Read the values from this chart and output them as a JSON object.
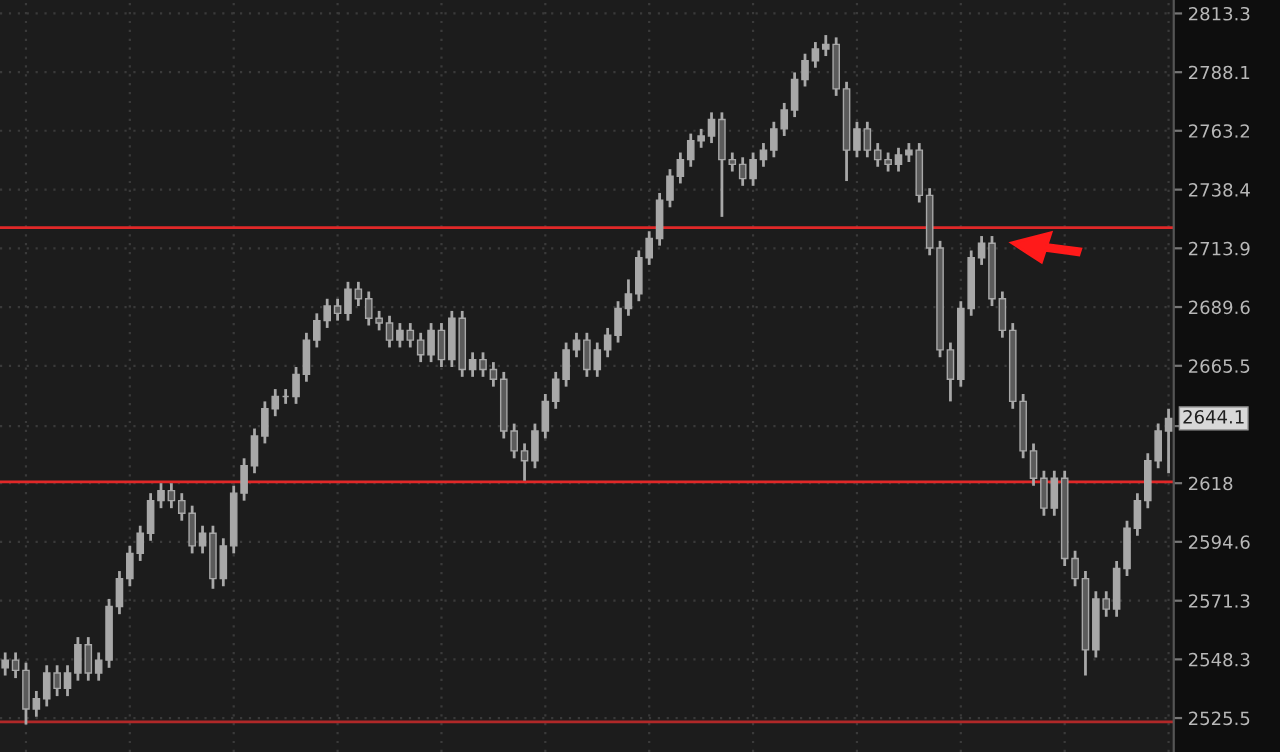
{
  "chart_data": {
    "type": "candlestick",
    "categories": [
      null,
      null,
      null,
      null,
      null,
      null,
      null,
      null,
      null,
      null,
      null,
      null,
      null,
      null,
      null,
      null,
      null,
      null,
      null,
      null,
      null,
      null,
      null,
      null,
      null,
      null,
      null,
      null,
      null,
      null,
      null,
      null,
      null,
      null,
      null,
      null,
      null,
      null,
      null,
      null,
      null,
      null,
      null,
      null,
      null,
      null,
      null,
      null,
      null,
      null,
      null,
      null,
      null,
      null,
      null,
      null,
      null,
      null,
      null,
      null,
      null,
      null,
      null,
      null,
      null,
      null,
      null,
      null,
      null,
      null,
      null,
      null,
      null,
      null,
      null,
      null,
      null,
      null,
      null,
      null,
      null,
      null,
      null,
      null,
      null,
      null,
      null,
      null,
      null,
      null,
      null,
      null,
      null,
      null,
      null,
      null,
      null,
      null,
      null,
      null,
      null,
      null,
      null,
      null,
      null,
      null,
      null,
      null,
      null,
      null,
      null,
      null,
      null
    ],
    "ohlc": [
      [
        2545,
        2551,
        2542,
        2548
      ],
      [
        2548,
        2551,
        2541,
        2544
      ],
      [
        2544,
        2547,
        2523,
        2529
      ],
      [
        2529,
        2536,
        2526,
        2533
      ],
      [
        2533,
        2546,
        2530,
        2543
      ],
      [
        2543,
        2546,
        2534,
        2537
      ],
      [
        2537,
        2546,
        2534,
        2543
      ],
      [
        2543,
        2557,
        2540,
        2554
      ],
      [
        2554,
        2557,
        2540,
        2543
      ],
      [
        2543,
        2551,
        2540,
        2548
      ],
      [
        2548,
        2572,
        2545,
        2569
      ],
      [
        2569,
        2583,
        2566,
        2580
      ],
      [
        2580,
        2593,
        2577,
        2590
      ],
      [
        2590,
        2601,
        2587,
        2598
      ],
      [
        2598,
        2614,
        2595,
        2611
      ],
      [
        2611,
        2618,
        2608,
        2615
      ],
      [
        2615,
        2618,
        2608,
        2611
      ],
      [
        2611,
        2614,
        2603,
        2606
      ],
      [
        2606,
        2609,
        2590,
        2593
      ],
      [
        2593,
        2601,
        2590,
        2598
      ],
      [
        2598,
        2601,
        2576,
        2580
      ],
      [
        2580,
        2596,
        2577,
        2593
      ],
      [
        2593,
        2617,
        2590,
        2614
      ],
      [
        2614,
        2628,
        2611,
        2625
      ],
      [
        2625,
        2640,
        2622,
        2637
      ],
      [
        2637,
        2651,
        2634,
        2648
      ],
      [
        2648,
        2656,
        2645,
        2653
      ],
      [
        2653,
        2656,
        2650,
        2653
      ],
      [
        2653,
        2665,
        2650,
        2662
      ],
      [
        2662,
        2679,
        2659,
        2676
      ],
      [
        2676,
        2687,
        2673,
        2684
      ],
      [
        2684,
        2693,
        2681,
        2690
      ],
      [
        2690,
        2693,
        2684,
        2687
      ],
      [
        2687,
        2700,
        2684,
        2697
      ],
      [
        2697,
        2700,
        2690,
        2693
      ],
      [
        2693,
        2696,
        2682,
        2685
      ],
      [
        2685,
        2688,
        2680,
        2683
      ],
      [
        2683,
        2686,
        2673,
        2676
      ],
      [
        2676,
        2683,
        2673,
        2680
      ],
      [
        2680,
        2683,
        2673,
        2676
      ],
      [
        2676,
        2679,
        2667,
        2670
      ],
      [
        2670,
        2683,
        2667,
        2680
      ],
      [
        2680,
        2683,
        2665,
        2668
      ],
      [
        2668,
        2688,
        2665,
        2685
      ],
      [
        2685,
        2688,
        2661,
        2664
      ],
      [
        2664,
        2671,
        2661,
        2668
      ],
      [
        2668,
        2671,
        2661,
        2664
      ],
      [
        2664,
        2667,
        2657,
        2660
      ],
      [
        2660,
        2663,
        2636,
        2639
      ],
      [
        2639,
        2642,
        2628,
        2631
      ],
      [
        2631,
        2634,
        2619,
        2627
      ],
      [
        2627,
        2642,
        2624,
        2639
      ],
      [
        2639,
        2654,
        2636,
        2651
      ],
      [
        2651,
        2663,
        2648,
        2660
      ],
      [
        2660,
        2675,
        2657,
        2672
      ],
      [
        2672,
        2679,
        2669,
        2676
      ],
      [
        2676,
        2679,
        2661,
        2664
      ],
      [
        2664,
        2675,
        2661,
        2672
      ],
      [
        2672,
        2681,
        2669,
        2678
      ],
      [
        2678,
        2692,
        2675,
        2689
      ],
      [
        2689,
        2701,
        2686,
        2695
      ],
      [
        2695,
        2713,
        2692,
        2710
      ],
      [
        2710,
        2721,
        2707,
        2718
      ],
      [
        2718,
        2737,
        2715,
        2734
      ],
      [
        2734,
        2747,
        2731,
        2744
      ],
      [
        2744,
        2754,
        2741,
        2751
      ],
      [
        2751,
        2762,
        2748,
        2759
      ],
      [
        2759,
        2764,
        2756,
        2761
      ],
      [
        2761,
        2771,
        2758,
        2768
      ],
      [
        2768,
        2771,
        2727,
        2751
      ],
      [
        2751,
        2754,
        2746,
        2749
      ],
      [
        2749,
        2752,
        2740,
        2743
      ],
      [
        2743,
        2754,
        2740,
        2751
      ],
      [
        2751,
        2758,
        2748,
        2755
      ],
      [
        2755,
        2767,
        2752,
        2764
      ],
      [
        2764,
        2775,
        2761,
        2772
      ],
      [
        2772,
        2788,
        2769,
        2785
      ],
      [
        2785,
        2796,
        2782,
        2793
      ],
      [
        2793,
        2801,
        2790,
        2798
      ],
      [
        2798,
        2804,
        2795,
        2800
      ],
      [
        2800,
        2803,
        2778,
        2781
      ],
      [
        2781,
        2784,
        2742,
        2755
      ],
      [
        2755,
        2767,
        2752,
        2764
      ],
      [
        2764,
        2767,
        2752,
        2755
      ],
      [
        2755,
        2758,
        2748,
        2751
      ],
      [
        2751,
        2754,
        2746,
        2749
      ],
      [
        2749,
        2756,
        2746,
        2753
      ],
      [
        2753,
        2758,
        2750,
        2755
      ],
      [
        2755,
        2758,
        2733,
        2736
      ],
      [
        2736,
        2739,
        2711,
        2714
      ],
      [
        2714,
        2717,
        2669,
        2672
      ],
      [
        2672,
        2675,
        2651,
        2660
      ],
      [
        2660,
        2692,
        2657,
        2689
      ],
      [
        2689,
        2713,
        2686,
        2710
      ],
      [
        2710,
        2719,
        2707,
        2716
      ],
      [
        2716,
        2719,
        2690,
        2693
      ],
      [
        2693,
        2696,
        2677,
        2680
      ],
      [
        2680,
        2683,
        2648,
        2651
      ],
      [
        2651,
        2654,
        2628,
        2631
      ],
      [
        2631,
        2634,
        2617,
        2620
      ],
      [
        2620,
        2623,
        2605,
        2608
      ],
      [
        2608,
        2623,
        2605,
        2620
      ],
      [
        2620,
        2623,
        2585,
        2588
      ],
      [
        2588,
        2591,
        2577,
        2580
      ],
      [
        2580,
        2583,
        2542,
        2552
      ],
      [
        2552,
        2575,
        2549,
        2572
      ],
      [
        2572,
        2575,
        2565,
        2568
      ],
      [
        2568,
        2587,
        2565,
        2584
      ],
      [
        2584,
        2603,
        2581,
        2600
      ],
      [
        2600,
        2614,
        2597,
        2611
      ],
      [
        2611,
        2630,
        2608,
        2627
      ],
      [
        2627,
        2642,
        2624,
        2639
      ],
      [
        2639,
        2648,
        2622,
        2644.1
      ]
    ],
    "color": "#a8a8a8",
    "log": true,
    "ylim": [
      2512.4,
      2819.1
    ],
    "yticks": [
      2525.5,
      2548.3,
      2571.3,
      2594.6,
      2618,
      {
        "value": 2641.0,
        "label": null
      },
      2665.5,
      2689.6,
      2713.9,
      2738.4,
      2763.2,
      2788.1,
      2813.3
    ],
    "tick_labels": "y",
    "grid": true,
    "ref_lines": [
      {
        "axis": "y",
        "value": 2722.5,
        "color": "#e02828"
      },
      {
        "axis": "y",
        "value": 2618.5,
        "color": "#e02828"
      },
      {
        "axis": "y",
        "value": 2524,
        "color": "#b02828"
      }
    ],
    "annotations": [
      {
        "text": "2644.1",
        "y": 2644.1
      }
    ]
  }
}
